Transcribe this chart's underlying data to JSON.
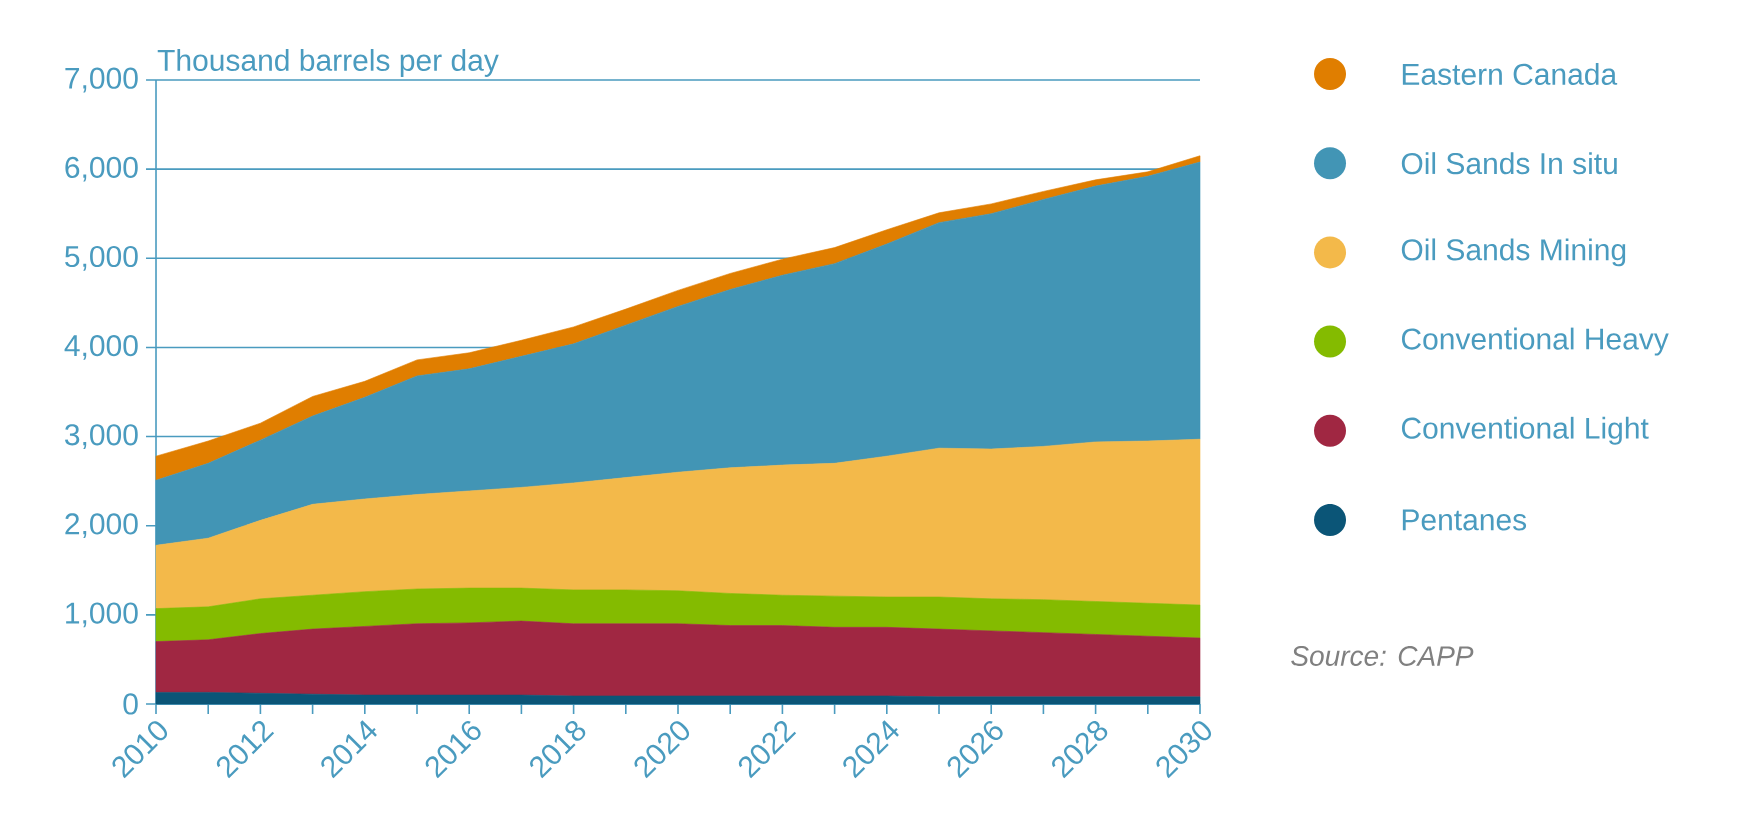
{
  "chart_data": {
    "type": "area",
    "stacked": true,
    "ylabel": "Thousand barrels per day",
    "x": [
      2010,
      2011,
      2012,
      2013,
      2014,
      2015,
      2016,
      2017,
      2018,
      2019,
      2020,
      2021,
      2022,
      2023,
      2024,
      2025,
      2026,
      2027,
      2028,
      2029,
      2030
    ],
    "series": [
      {
        "name": "Pentanes",
        "color": "#0b5577",
        "values": [
          130,
          130,
          120,
          110,
          100,
          100,
          100,
          100,
          90,
          90,
          90,
          90,
          90,
          90,
          90,
          80,
          80,
          80,
          80,
          80,
          80
        ]
      },
      {
        "name": "Conventional Light",
        "color": "#a02742",
        "values": [
          570,
          590,
          670,
          730,
          770,
          800,
          810,
          830,
          810,
          810,
          810,
          790,
          790,
          770,
          770,
          760,
          740,
          720,
          700,
          680,
          660
        ]
      },
      {
        "name": "Conventional Heavy",
        "color": "#84bb00",
        "values": [
          370,
          370,
          390,
          380,
          390,
          390,
          390,
          370,
          380,
          380,
          370,
          360,
          340,
          350,
          340,
          360,
          360,
          370,
          370,
          370,
          370
        ]
      },
      {
        "name": "Oil Sands Mining",
        "color": "#f3b94a",
        "values": [
          710,
          770,
          880,
          1020,
          1040,
          1060,
          1090,
          1130,
          1200,
          1260,
          1330,
          1410,
          1460,
          1490,
          1580,
          1670,
          1680,
          1720,
          1790,
          1820,
          1860
        ]
      },
      {
        "name": "Oil Sands In situ",
        "color": "#4295b5",
        "values": [
          730,
          840,
          900,
          990,
          1140,
          1330,
          1370,
          1470,
          1560,
          1710,
          1860,
          2000,
          2130,
          2240,
          2380,
          2530,
          2640,
          2770,
          2870,
          2970,
          3110
        ]
      },
      {
        "name": "Eastern Canada",
        "color": "#e07e00",
        "values": [
          270,
          250,
          190,
          220,
          180,
          180,
          180,
          180,
          190,
          180,
          180,
          180,
          180,
          180,
          160,
          110,
          110,
          90,
          70,
          50,
          70
        ]
      }
    ],
    "xlim": [
      2010,
      2030
    ],
    "xticks": [
      2010,
      {
        "value": 2011,
        "label": null
      },
      2012,
      {
        "value": 2013,
        "label": null
      },
      2014,
      {
        "value": 2015,
        "label": null
      },
      2016,
      {
        "value": 2017,
        "label": null
      },
      2018,
      {
        "value": 2019,
        "label": null
      },
      2020,
      {
        "value": 2021,
        "label": null
      },
      2022,
      {
        "value": 2023,
        "label": null
      },
      2024,
      {
        "value": 2025,
        "label": null
      },
      2026,
      {
        "value": 2027,
        "label": null
      },
      2028,
      {
        "value": 2029,
        "label": null
      },
      2030
    ],
    "ylim": [
      0,
      7000
    ],
    "yticks": [
      {
        "value": 0,
        "label": "0"
      },
      {
        "value": 1000,
        "label": "1,000"
      },
      {
        "value": 2000,
        "label": "2,000"
      },
      {
        "value": 3000,
        "label": "3,000"
      },
      {
        "value": 4000,
        "label": "4,000"
      },
      {
        "value": 5000,
        "label": "5,000"
      },
      {
        "value": 6000,
        "label": "6,000"
      },
      {
        "value": 7000,
        "label": "7,000"
      }
    ],
    "grid": "y",
    "legend": "right",
    "marker": "none",
    "annotations": [
      "*Source: CAPP*"
    ]
  }
}
